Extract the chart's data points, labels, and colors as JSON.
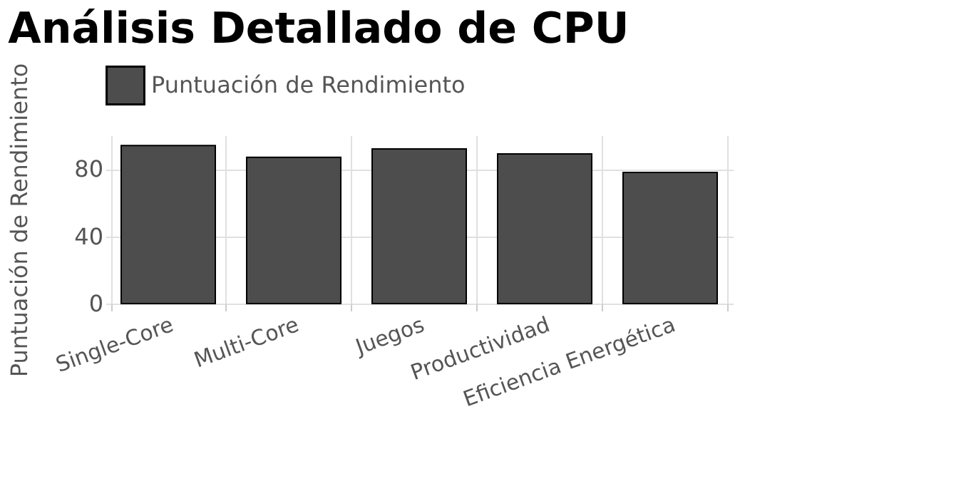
{
  "chart_data": {
    "type": "bar",
    "title": "Análisis Detallado de CPU",
    "ylabel": "Puntuación de Rendimiento",
    "categories": [
      "Single-Core",
      "Multi-Core",
      "Juegos",
      "Productividad",
      "Eficiencia Energética"
    ],
    "series": [
      {
        "name": "Puntuación de Rendimiento",
        "color": "#4d4d4d",
        "values": [
          94,
          87,
          92,
          89,
          78
        ]
      }
    ],
    "ylim": [
      0,
      100
    ],
    "yticks": [
      0,
      40,
      80
    ],
    "grid": true,
    "legend": "top"
  }
}
